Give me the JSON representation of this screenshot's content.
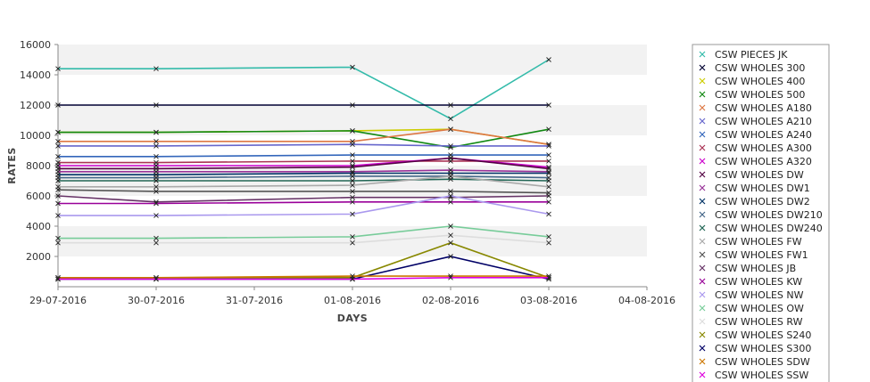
{
  "chart_data": {
    "type": "line",
    "title": "",
    "xlabel": "DAYS",
    "ylabel": "RATES",
    "x_ticks": [
      "29-07-2016",
      "30-07-2016",
      "31-07-2016",
      "01-08-2016",
      "02-08-2016",
      "03-08-2016",
      "04-08-2016"
    ],
    "x_points": [
      "29-07-2016",
      "30-07-2016",
      "01-08-2016",
      "02-08-2016",
      "03-08-2016"
    ],
    "xlim": [
      "29-07-2016",
      "04-08-2016"
    ],
    "y_ticks": [
      2000,
      4000,
      6000,
      8000,
      10000,
      12000,
      14000,
      16000
    ],
    "ylim": [
      0,
      16000
    ],
    "grid": "horizontal alternating bands",
    "legend_position": "right",
    "legend": [
      "CSW PIECES JK",
      "CSW WHOLES 300",
      "CSW WHOLES 400",
      "CSW WHOLES 500",
      "CSW WHOLES A180",
      "CSW WHOLES A210",
      "CSW WHOLES A240",
      "CSW WHOLES A300",
      "CSW WHOLES A320",
      "CSW WHOLES DW",
      "CSW WHOLES DW1",
      "CSW WHOLES DW2",
      "CSW WHOLES DW210",
      "CSW WHOLES DW240",
      "CSW WHOLES FW",
      "CSW WHOLES FW1",
      "CSW WHOLES JB",
      "CSW WHOLES KW",
      "CSW WHOLES NW",
      "CSW WHOLES OW",
      "CSW WHOLES RW",
      "CSW WHOLES S240",
      "CSW WHOLES S300",
      "CSW WHOLES SDW",
      "CSW WHOLES SSW"
    ],
    "series": [
      {
        "values": [
          14400,
          14400,
          14500,
          11100,
          15000
        ],
        "color": "#33bbaa"
      },
      {
        "values": [
          12000,
          12000,
          12000,
          12000,
          12000
        ],
        "color": "#000033"
      },
      {
        "values": [
          10200,
          10200,
          10300,
          10400,
          9400
        ],
        "color": "#cccc00"
      },
      {
        "values": [
          10200,
          10200,
          10300,
          9200,
          10400
        ],
        "color": "#118811"
      },
      {
        "values": [
          9600,
          9600,
          9600,
          10400,
          9400
        ],
        "color": "#dd7744"
      },
      {
        "values": [
          9300,
          9300,
          9400,
          9300,
          9300
        ],
        "color": "#6666cc"
      },
      {
        "values": [
          8600,
          8600,
          8700,
          8700,
          8700
        ],
        "color": "#3366bb"
      },
      {
        "values": [
          8200,
          8200,
          8300,
          8300,
          8300
        ],
        "color": "#aa3355"
      },
      {
        "values": [
          8000,
          8000,
          8000,
          8500,
          7900
        ],
        "color": "#cc00cc"
      },
      {
        "values": [
          7800,
          7800,
          7900,
          8500,
          7800
        ],
        "color": "#550044"
      },
      {
        "values": [
          7600,
          7600,
          7600,
          7700,
          7600
        ],
        "color": "#993399"
      },
      {
        "values": [
          7400,
          7400,
          7500,
          7500,
          7500
        ],
        "color": "#003366"
      },
      {
        "values": [
          7200,
          7200,
          7300,
          7300,
          7200
        ],
        "color": "#446688"
      },
      {
        "values": [
          7000,
          7000,
          7000,
          7100,
          7000
        ],
        "color": "#226655"
      },
      {
        "values": [
          6600,
          6600,
          6700,
          7300,
          6600
        ],
        "color": "#aaaaaa"
      },
      {
        "values": [
          6400,
          6300,
          6300,
          6300,
          6200
        ],
        "color": "#555555"
      },
      {
        "values": [
          6000,
          5600,
          5900,
          5900,
          6000
        ],
        "color": "#663366"
      },
      {
        "values": [
          5500,
          5500,
          5600,
          5600,
          5600
        ],
        "color": "#990099"
      },
      {
        "values": [
          4700,
          4700,
          4800,
          6000,
          4800
        ],
        "color": "#aa99ee"
      },
      {
        "values": [
          3200,
          3200,
          3300,
          4000,
          3300
        ],
        "color": "#77cc99"
      },
      {
        "values": [
          2900,
          2900,
          2900,
          3400,
          2900
        ],
        "color": "#dddddd"
      },
      {
        "values": [
          600,
          600,
          600,
          2900,
          600
        ],
        "color": "#888800"
      },
      {
        "values": [
          500,
          500,
          500,
          2000,
          500
        ],
        "color": "#000066"
      },
      {
        "values": [
          600,
          600,
          700,
          700,
          700
        ],
        "color": "#cc7700"
      },
      {
        "values": [
          500,
          500,
          500,
          600,
          600
        ],
        "color": "#dd00dd"
      }
    ]
  }
}
